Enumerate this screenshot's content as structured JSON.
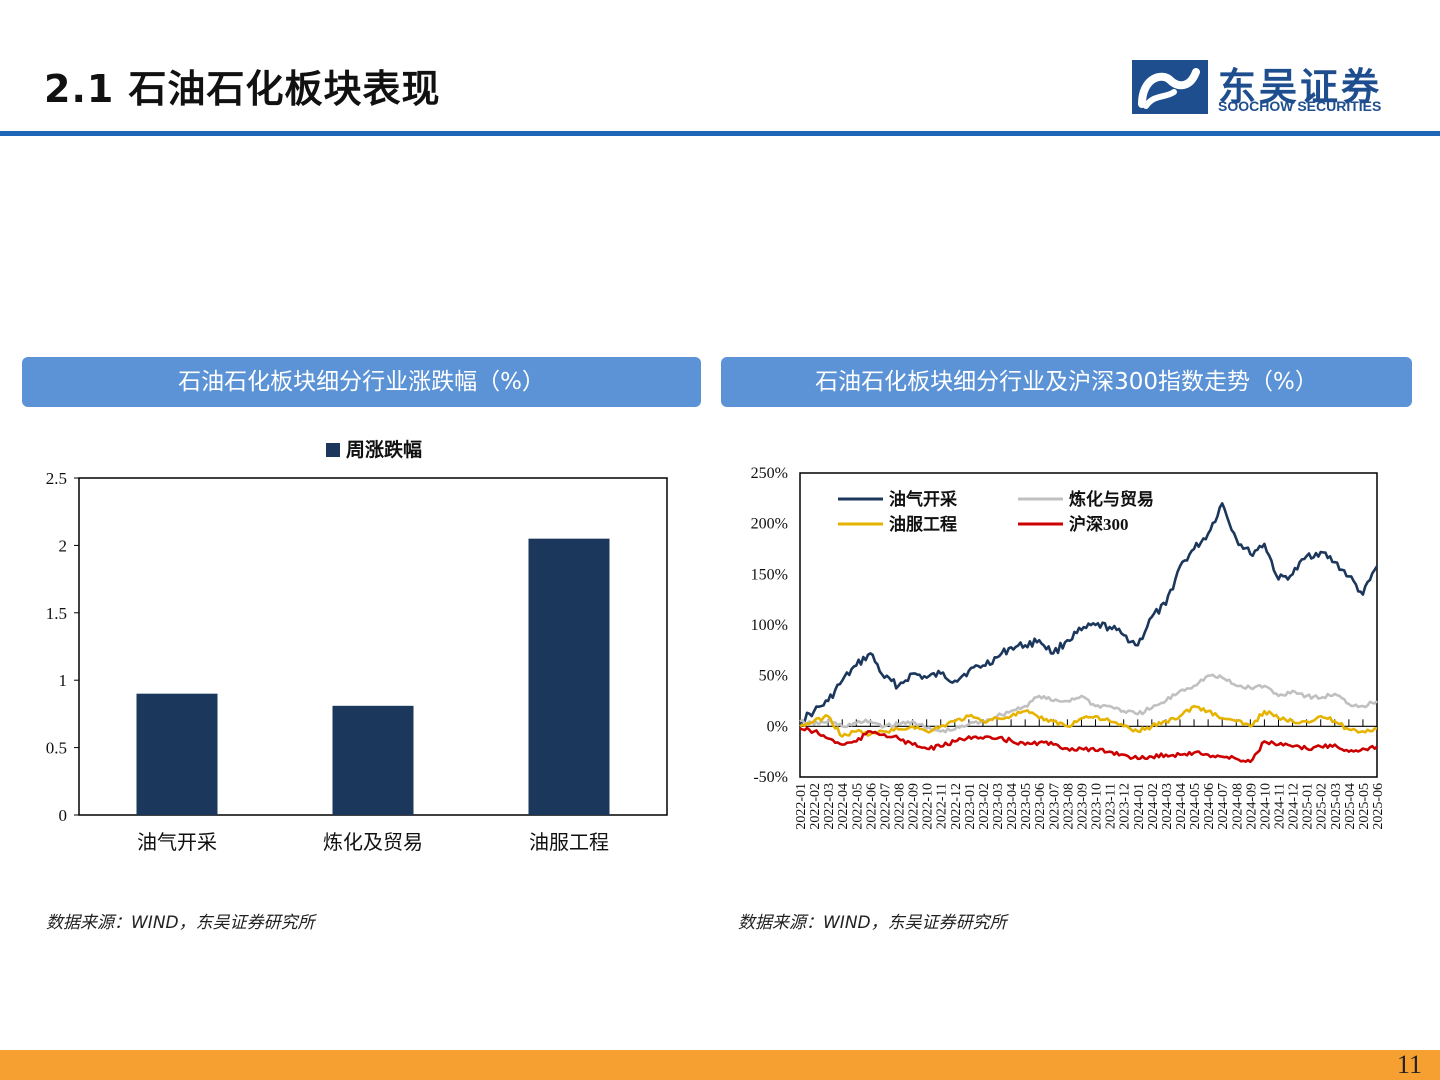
{
  "header": {
    "title": "2.1 石油石化板块表现"
  },
  "logo": {
    "name_cn": "东吴证券",
    "name_en": "SOOCHOW SECURITIES"
  },
  "left_panel": {
    "heading": "石油石化板块细分行业涨跌幅（%）",
    "source": "数据来源：WIND，东吴证券研究所"
  },
  "right_panel": {
    "heading": "石油石化板块细分行业及沪深300指数走势（%）",
    "source": "数据来源：WIND，东吴证券研究所"
  },
  "footer": {
    "page_number": "11"
  },
  "colors": {
    "accent_blue": "#1f66b8",
    "panel_blue": "#5b93d6",
    "footer_orange": "#f5a030",
    "bar": "#1c375c"
  },
  "chart_data": [
    {
      "type": "bar",
      "categories": [
        "油气开采",
        "炼化及贸易",
        "油服工程"
      ],
      "series": [
        {
          "name": "周涨跌幅",
          "values": [
            0.9,
            0.81,
            2.05
          ]
        }
      ],
      "ylim": [
        0,
        2.5
      ],
      "yticks": [
        "0",
        "0.5",
        "1",
        "1.5",
        "2",
        "2.5"
      ],
      "legend": "top-center",
      "grid": false
    },
    {
      "type": "line",
      "x_start": "2022-01",
      "x_end": "2025-06",
      "x_tick_labels": [
        "2022-01",
        "2022-02",
        "2022-03",
        "2022-04",
        "2022-05",
        "2022-06",
        "2022-07",
        "2022-08",
        "2022-09",
        "2022-10",
        "2022-11",
        "2022-12",
        "2023-01",
        "2023-02",
        "2023-03",
        "2023-04",
        "2023-05",
        "2023-06",
        "2023-07",
        "2023-08",
        "2023-09",
        "2023-10",
        "2023-11",
        "2023-12",
        "2024-01",
        "2024-02",
        "2024-03",
        "2024-04",
        "2024-05",
        "2024-06",
        "2024-07",
        "2024-08",
        "2024-09",
        "2024-10",
        "2024-11",
        "2024-12",
        "2025-01",
        "2025-02",
        "2025-03",
        "2025-04",
        "2025-05",
        "2025-06"
      ],
      "ylim": [
        -50,
        250
      ],
      "yticks": [
        "-50%",
        "0%",
        "50%",
        "100%",
        "150%",
        "200%",
        "250%"
      ],
      "legend": "top-left",
      "grid": false,
      "series": [
        {
          "name": "油气开采",
          "color": "#1c375c",
          "points": [
            [
              "2022-01",
              5
            ],
            [
              "2022-02",
              15
            ],
            [
              "2022-03",
              25
            ],
            [
              "2022-04",
              45
            ],
            [
              "2022-05",
              60
            ],
            [
              "2022-06",
              72
            ],
            [
              "2022-07",
              48
            ],
            [
              "2022-08",
              40
            ],
            [
              "2022-09",
              52
            ],
            [
              "2022-10",
              48
            ],
            [
              "2022-11",
              52
            ],
            [
              "2022-12",
              45
            ],
            [
              "2023-01",
              55
            ],
            [
              "2023-02",
              60
            ],
            [
              "2023-03",
              68
            ],
            [
              "2023-04",
              78
            ],
            [
              "2023-05",
              80
            ],
            [
              "2023-06",
              85
            ],
            [
              "2023-07",
              72
            ],
            [
              "2023-08",
              85
            ],
            [
              "2023-09",
              95
            ],
            [
              "2023-10",
              100
            ],
            [
              "2023-11",
              98
            ],
            [
              "2023-12",
              90
            ],
            [
              "2024-01",
              80
            ],
            [
              "2024-02",
              108
            ],
            [
              "2024-03",
              120
            ],
            [
              "2024-04",
              158
            ],
            [
              "2024-05",
              175
            ],
            [
              "2024-06",
              190
            ],
            [
              "2024-07",
              220
            ],
            [
              "2024-08",
              185
            ],
            [
              "2024-09",
              170
            ],
            [
              "2024-10",
              180
            ],
            [
              "2024-11",
              145
            ],
            [
              "2024-12",
              150
            ],
            [
              "2025-01",
              168
            ],
            [
              "2025-02",
              172
            ],
            [
              "2025-03",
              162
            ],
            [
              "2025-04",
              148
            ],
            [
              "2025-05",
              130
            ],
            [
              "2025-06",
              158
            ]
          ]
        },
        {
          "name": "炼化与贸易",
          "color": "#c0c0c0",
          "points": [
            [
              "2022-01",
              5
            ],
            [
              "2022-02",
              2
            ],
            [
              "2022-03",
              5
            ],
            [
              "2022-04",
              0
            ],
            [
              "2022-05",
              3
            ],
            [
              "2022-06",
              5
            ],
            [
              "2022-07",
              0
            ],
            [
              "2022-08",
              2
            ],
            [
              "2022-09",
              5
            ],
            [
              "2022-10",
              -2
            ],
            [
              "2022-11",
              -5
            ],
            [
              "2022-12",
              -3
            ],
            [
              "2023-01",
              2
            ],
            [
              "2023-02",
              5
            ],
            [
              "2023-03",
              10
            ],
            [
              "2023-04",
              15
            ],
            [
              "2023-05",
              20
            ],
            [
              "2023-06",
              30
            ],
            [
              "2023-07",
              25
            ],
            [
              "2023-08",
              25
            ],
            [
              "2023-09",
              30
            ],
            [
              "2023-10",
              20
            ],
            [
              "2023-11",
              20
            ],
            [
              "2023-12",
              15
            ],
            [
              "2024-01",
              12
            ],
            [
              "2024-02",
              18
            ],
            [
              "2024-03",
              25
            ],
            [
              "2024-04",
              35
            ],
            [
              "2024-05",
              40
            ],
            [
              "2024-06",
              50
            ],
            [
              "2024-07",
              48
            ],
            [
              "2024-08",
              40
            ],
            [
              "2024-09",
              38
            ],
            [
              "2024-10",
              40
            ],
            [
              "2024-11",
              30
            ],
            [
              "2024-12",
              35
            ],
            [
              "2025-01",
              30
            ],
            [
              "2025-02",
              28
            ],
            [
              "2025-03",
              32
            ],
            [
              "2025-04",
              22
            ],
            [
              "2025-05",
              20
            ],
            [
              "2025-06",
              25
            ]
          ]
        },
        {
          "name": "油服工程",
          "color": "#e6b400",
          "points": [
            [
              "2022-01",
              0
            ],
            [
              "2022-02",
              5
            ],
            [
              "2022-03",
              10
            ],
            [
              "2022-04",
              -10
            ],
            [
              "2022-05",
              -5
            ],
            [
              "2022-06",
              -8
            ],
            [
              "2022-07",
              -5
            ],
            [
              "2022-08",
              -3
            ],
            [
              "2022-09",
              0
            ],
            [
              "2022-10",
              -5
            ],
            [
              "2022-11",
              0
            ],
            [
              "2022-12",
              5
            ],
            [
              "2023-01",
              10
            ],
            [
              "2023-02",
              5
            ],
            [
              "2023-03",
              8
            ],
            [
              "2023-04",
              10
            ],
            [
              "2023-05",
              15
            ],
            [
              "2023-06",
              8
            ],
            [
              "2023-07",
              5
            ],
            [
              "2023-08",
              0
            ],
            [
              "2023-09",
              8
            ],
            [
              "2023-10",
              10
            ],
            [
              "2023-11",
              5
            ],
            [
              "2023-12",
              0
            ],
            [
              "2024-01",
              -5
            ],
            [
              "2024-02",
              0
            ],
            [
              "2024-03",
              5
            ],
            [
              "2024-04",
              10
            ],
            [
              "2024-05",
              20
            ],
            [
              "2024-06",
              15
            ],
            [
              "2024-07",
              8
            ],
            [
              "2024-08",
              5
            ],
            [
              "2024-09",
              0
            ],
            [
              "2024-10",
              15
            ],
            [
              "2024-11",
              8
            ],
            [
              "2024-12",
              5
            ],
            [
              "2025-01",
              5
            ],
            [
              "2025-02",
              10
            ],
            [
              "2025-03",
              5
            ],
            [
              "2025-04",
              -3
            ],
            [
              "2025-05",
              -5
            ],
            [
              "2025-06",
              -2
            ]
          ]
        },
        {
          "name": "沪深300",
          "color": "#cc0000",
          "points": [
            [
              "2022-01",
              -2
            ],
            [
              "2022-02",
              -5
            ],
            [
              "2022-03",
              -12
            ],
            [
              "2022-04",
              -18
            ],
            [
              "2022-05",
              -15
            ],
            [
              "2022-06",
              -5
            ],
            [
              "2022-07",
              -8
            ],
            [
              "2022-08",
              -12
            ],
            [
              "2022-09",
              -18
            ],
            [
              "2022-10",
              -22
            ],
            [
              "2022-11",
              -20
            ],
            [
              "2022-12",
              -15
            ],
            [
              "2023-01",
              -10
            ],
            [
              "2023-02",
              -12
            ],
            [
              "2023-03",
              -12
            ],
            [
              "2023-04",
              -14
            ],
            [
              "2023-05",
              -18
            ],
            [
              "2023-06",
              -16
            ],
            [
              "2023-07",
              -18
            ],
            [
              "2023-08",
              -22
            ],
            [
              "2023-09",
              -22
            ],
            [
              "2023-10",
              -24
            ],
            [
              "2023-11",
              -25
            ],
            [
              "2023-12",
              -28
            ],
            [
              "2024-01",
              -32
            ],
            [
              "2024-02",
              -30
            ],
            [
              "2024-03",
              -28
            ],
            [
              "2024-04",
              -28
            ],
            [
              "2024-05",
              -26
            ],
            [
              "2024-06",
              -28
            ],
            [
              "2024-07",
              -30
            ],
            [
              "2024-08",
              -32
            ],
            [
              "2024-09",
              -35
            ],
            [
              "2024-10",
              -15
            ],
            [
              "2024-11",
              -18
            ],
            [
              "2024-12",
              -20
            ],
            [
              "2025-01",
              -22
            ],
            [
              "2025-02",
              -20
            ],
            [
              "2025-03",
              -18
            ],
            [
              "2025-04",
              -25
            ],
            [
              "2025-05",
              -22
            ],
            [
              "2025-06",
              -20
            ]
          ]
        }
      ]
    }
  ]
}
